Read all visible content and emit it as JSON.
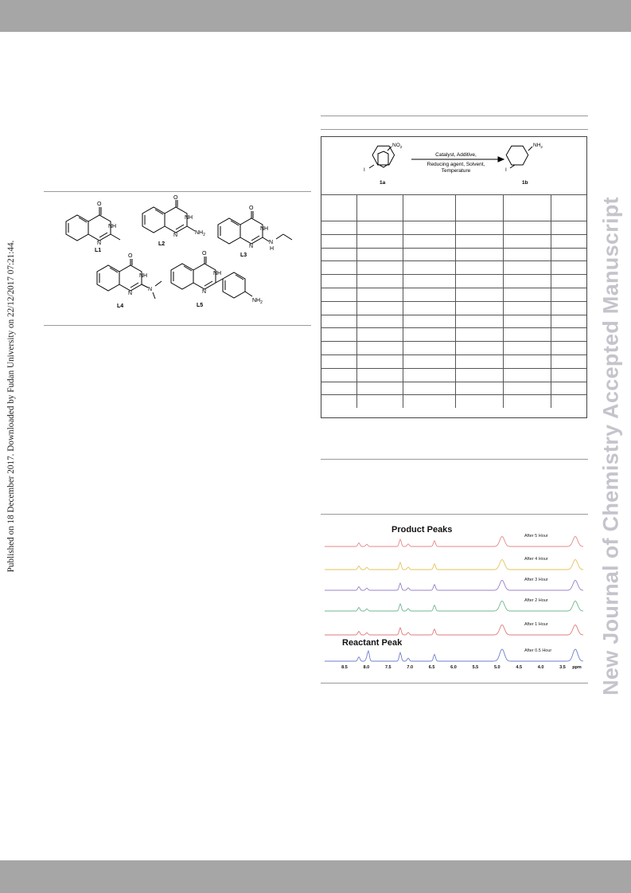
{
  "side_note": "Published on 18 December 2017. Downloaded by Fudan University on 22/12/2017 07:21:44.",
  "watermark": "New Journal of Chemistry Accepted Manuscript",
  "ligand_figure": {
    "labels": [
      "L1",
      "L2",
      "L3",
      "L4",
      "L5"
    ],
    "atoms": {
      "O": "O",
      "NH": "NH",
      "N": "N",
      "NH2": "NH",
      "sub2": "2",
      "H": "H"
    }
  },
  "scheme": {
    "reactant_label": "1a",
    "product_label": "1b",
    "reactant_group": "NO",
    "product_group": "NH",
    "sub2": "2",
    "halogen": "I",
    "conditions": [
      "Catalyst, Additive,",
      "Reducing agent, Solvent,",
      "Temperature"
    ]
  },
  "table": {
    "columns": 6,
    "rows": 15
  },
  "nmr": {
    "product_title": "Product Peaks",
    "reactant_title": "Reactant Peak",
    "traces": [
      {
        "label": "After 5 Hour",
        "color": "#e58a8a"
      },
      {
        "label": "After 4 Hour",
        "color": "#e3c45e"
      },
      {
        "label": "After 3 Hour",
        "color": "#9b80c9"
      },
      {
        "label": "After 2 Hour",
        "color": "#6fb88c"
      },
      {
        "label": "After 1 Hour",
        "color": "#e07b7b"
      },
      {
        "label": "After 0.5 Hour",
        "color": "#6f7fcf"
      }
    ],
    "axis_ticks": [
      "8.5",
      "8.0",
      "7.5",
      "7.0",
      "6.5",
      "6.0",
      "5.5",
      "5.0",
      "4.5",
      "4.0",
      "3.5"
    ],
    "axis_unit": "ppm"
  }
}
